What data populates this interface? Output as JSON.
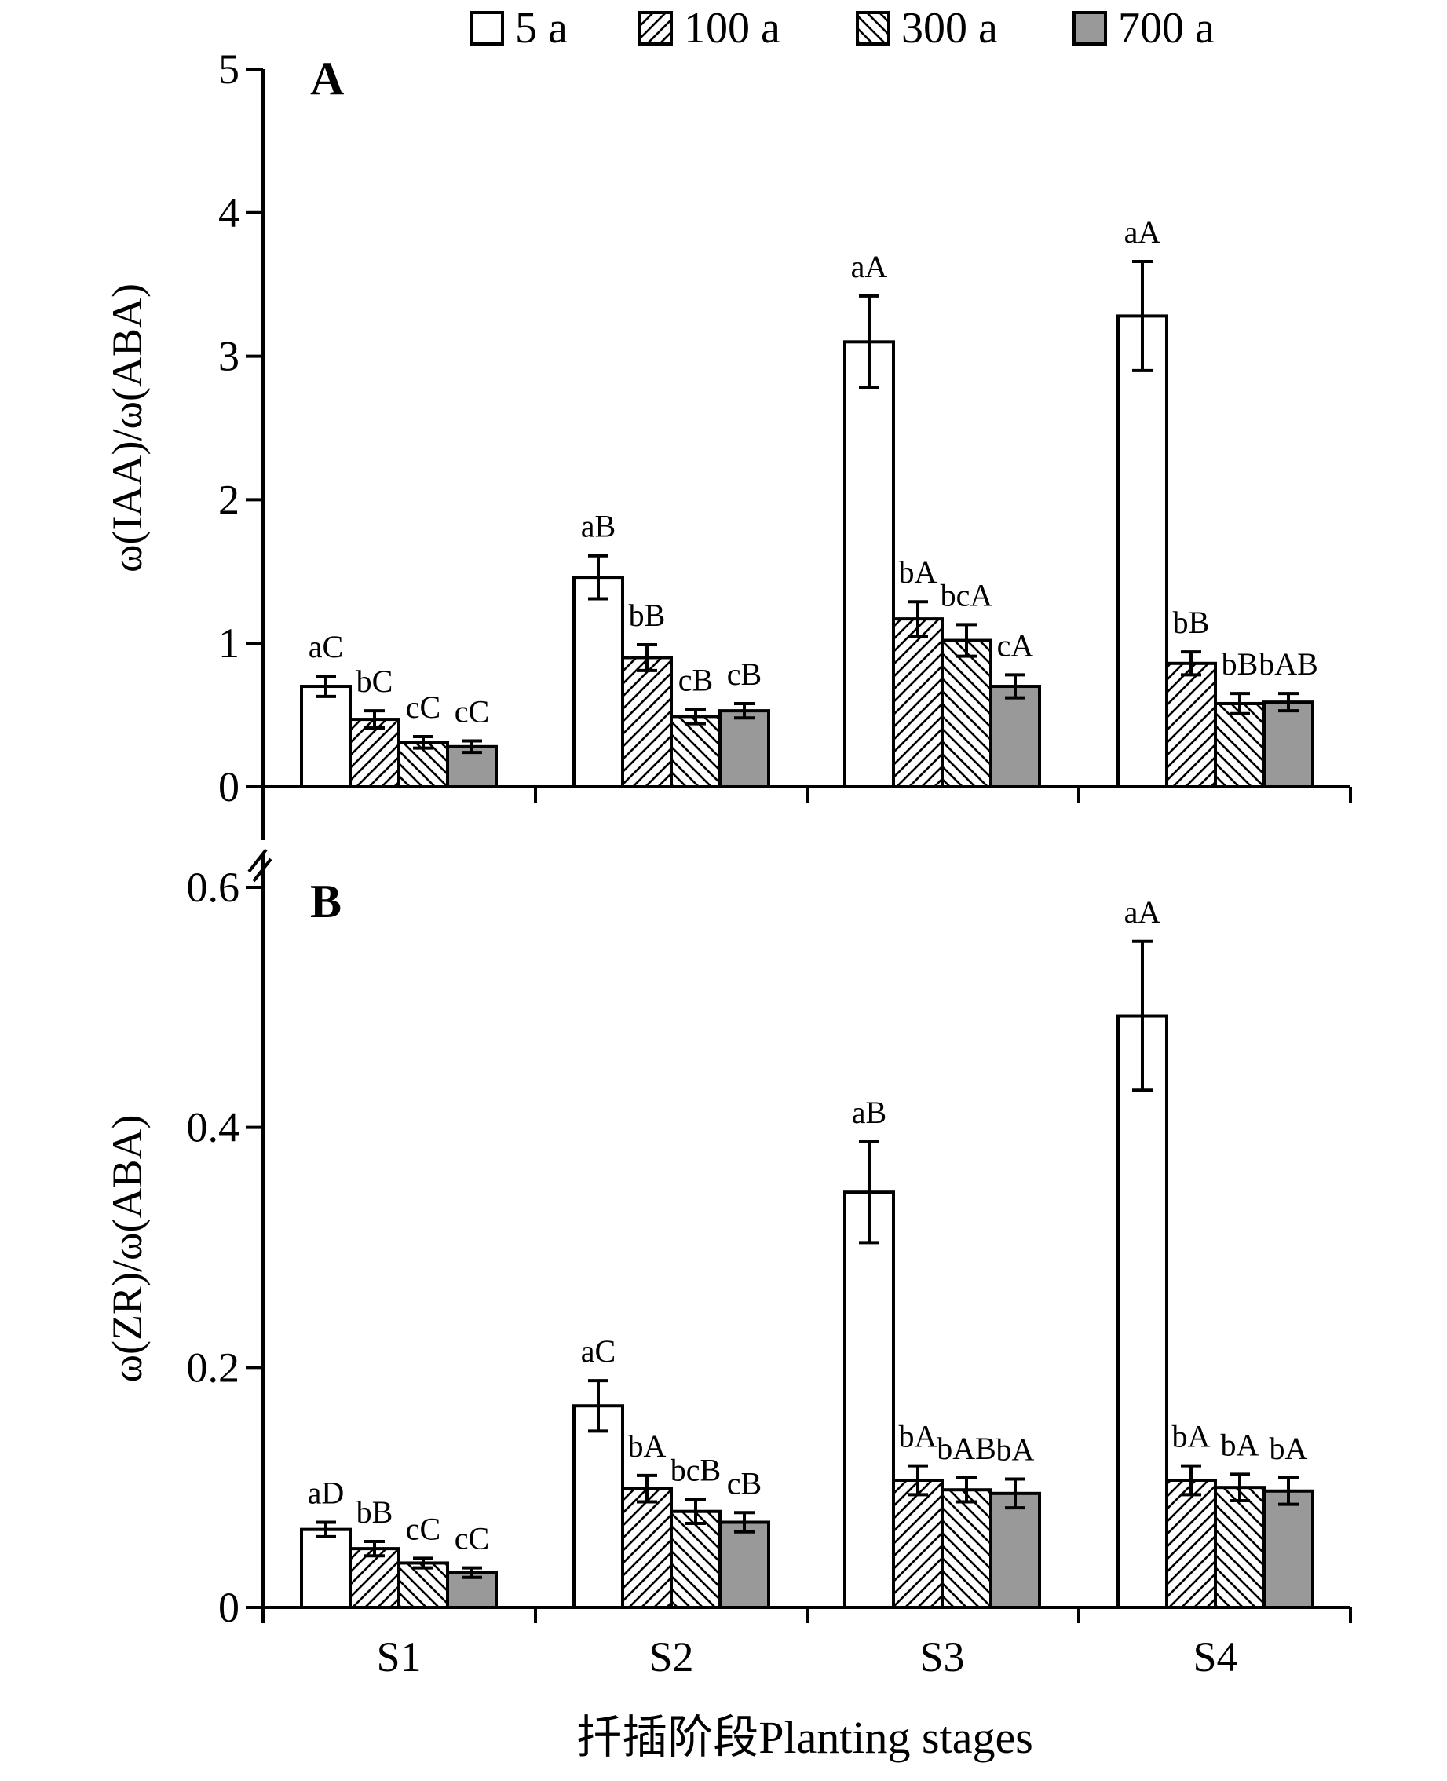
{
  "legend": [
    "5 a",
    "100 a",
    "300 a",
    "700 a"
  ],
  "xlabel": "扦插阶段Planting stages",
  "chart_data": [
    {
      "type": "bar",
      "panel": "A",
      "ylabel": "ω(IAA)/ω(ABA)",
      "ylim": [
        0,
        5
      ],
      "yticks": [
        "0",
        "1",
        "2",
        "3",
        "4",
        "5"
      ],
      "categories": [
        "S1",
        "S2",
        "S3",
        "S4"
      ],
      "series": [
        {
          "name": "5 a",
          "pattern": "white",
          "values": [
            0.7,
            1.46,
            3.1,
            3.28
          ],
          "errors": [
            0.07,
            0.15,
            0.32,
            0.38
          ],
          "labels": [
            "aC",
            "aB",
            "aA",
            "aA"
          ]
        },
        {
          "name": "100 a",
          "pattern": "hatch-right",
          "values": [
            0.47,
            0.9,
            1.17,
            0.86
          ],
          "errors": [
            0.06,
            0.09,
            0.12,
            0.08
          ],
          "labels": [
            "bC",
            "bB",
            "bA",
            "bB"
          ]
        },
        {
          "name": "300 a",
          "pattern": "hatch-left",
          "values": [
            0.31,
            0.49,
            1.02,
            0.58
          ],
          "errors": [
            0.04,
            0.05,
            0.11,
            0.07
          ],
          "labels": [
            "cC",
            "cB",
            "bcA",
            "bB"
          ]
        },
        {
          "name": "700 a",
          "pattern": "gray",
          "values": [
            0.28,
            0.53,
            0.7,
            0.59
          ],
          "errors": [
            0.04,
            0.05,
            0.08,
            0.06
          ],
          "labels": [
            "cC",
            "cB",
            "cA",
            "bAB"
          ]
        }
      ]
    },
    {
      "type": "bar",
      "panel": "B",
      "ylabel": "ω(ZR)/ω(ABA)",
      "ylim": [
        0,
        0.6
      ],
      "yticks": [
        "0",
        "0.2",
        "0.4",
        "0.6"
      ],
      "categories": [
        "S1",
        "S2",
        "S3",
        "S4"
      ],
      "series": [
        {
          "name": "5 a",
          "pattern": "white",
          "values": [
            0.065,
            0.168,
            0.346,
            0.493
          ],
          "errors": [
            0.006,
            0.021,
            0.042,
            0.062
          ],
          "labels": [
            "aD",
            "aC",
            "aB",
            "aA"
          ]
        },
        {
          "name": "100 a",
          "pattern": "hatch-right",
          "values": [
            0.049,
            0.099,
            0.106,
            0.106
          ],
          "errors": [
            0.006,
            0.011,
            0.012,
            0.012
          ],
          "labels": [
            "bB",
            "bA",
            "bA",
            "bA"
          ]
        },
        {
          "name": "300 a",
          "pattern": "hatch-left",
          "values": [
            0.037,
            0.08,
            0.098,
            0.1
          ],
          "errors": [
            0.004,
            0.01,
            0.01,
            0.011
          ],
          "labels": [
            "cC",
            "bcB",
            "bAB",
            "bA"
          ]
        },
        {
          "name": "700 a",
          "pattern": "gray",
          "values": [
            0.029,
            0.071,
            0.095,
            0.097
          ],
          "errors": [
            0.004,
            0.008,
            0.012,
            0.011
          ],
          "labels": [
            "cC",
            "cB",
            "bA",
            "bA"
          ]
        }
      ]
    }
  ]
}
